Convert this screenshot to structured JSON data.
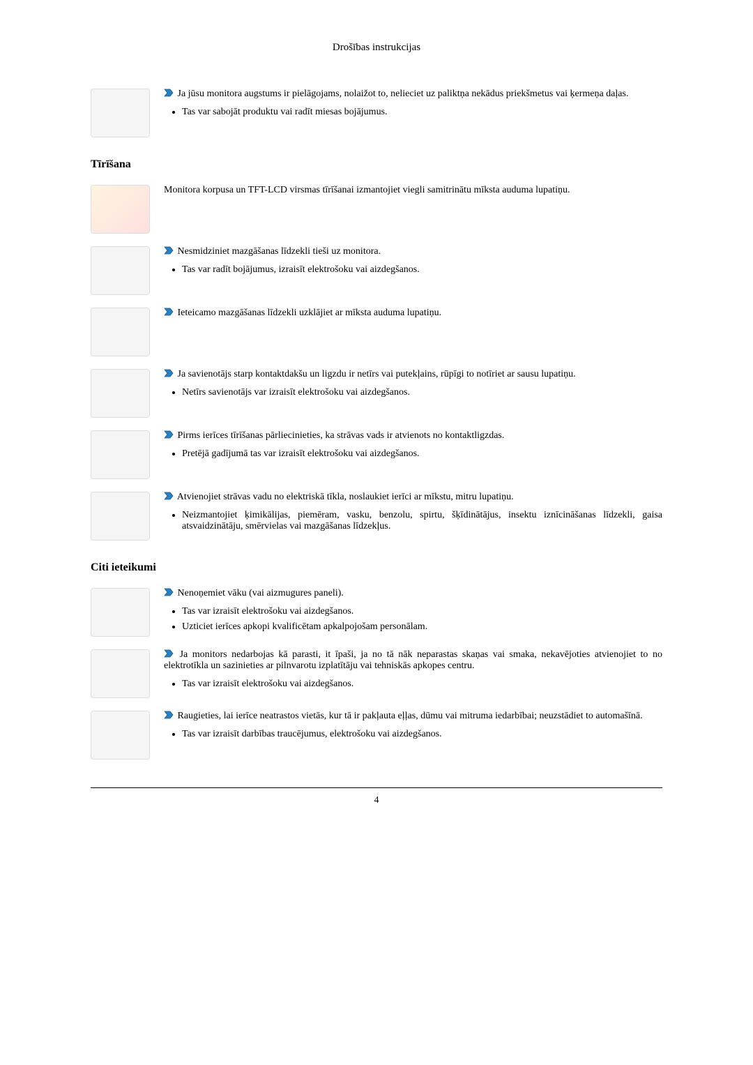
{
  "header": "Drošības instrukcijas",
  "pageNumber": "4",
  "arrow_fill": "#2a7fbf",
  "arrow_stroke": "#1b5a8a",
  "sections": [
    {
      "heading": null,
      "entries": [
        {
          "lead": "Ja jūsu monitora augstums ir pielāgojams, nolaižot to, nelieciet uz paliktņa nekādus priekšmetus vai ķermeņa daļas.",
          "bullets": [
            "Tas var sabojāt produktu vai radīt miesas bojājumus."
          ]
        }
      ]
    },
    {
      "heading": "Tīrīšana",
      "entries": [
        {
          "warn": true,
          "lead_plain": "Monitora korpusa un TFT-LCD virsmas tīrīšanai izmantojiet viegli samitrinātu mīksta auduma lupatiņu.",
          "bullets": []
        },
        {
          "lead": "Nesmidziniet mazgāšanas līdzekli tieši uz monitora.",
          "bullets": [
            "Tas var radīt bojājumus, izraisīt elektrošoku vai aizdegšanos."
          ]
        },
        {
          "lead": "Ieteicamo mazgāšanas līdzekli uzklājiet ar mīksta auduma lupatiņu.",
          "bullets": []
        },
        {
          "lead": "Ja savienotājs starp kontaktdakšu un ligzdu ir netīrs vai putekļains, rūpīgi to notīriet ar sausu lupatiņu.",
          "bullets": [
            "Netīrs savienotājs var izraisīt elektrošoku vai aizdegšanos."
          ]
        },
        {
          "lead": "Pirms ierīces tīrīšanas pārliecinieties, ka strāvas vads ir atvienots no kontaktligzdas.",
          "bullets": [
            "Pretējā gadījumā tas var izraisīt elektrošoku vai aizdegšanos."
          ]
        },
        {
          "lead": "Atvienojiet strāvas vadu no elektriskā tīkla, noslaukiet ierīci ar mīkstu, mitru lupatiņu.",
          "bullets": [
            "Neizmantojiet ķimikālijas, piemēram, vasku, benzolu, spirtu, šķīdinātājus, insektu iznīcināšanas līdzekli, gaisa atsvaidzinātāju, smērvielas vai mazgāšanas līdzekļus."
          ]
        }
      ]
    },
    {
      "heading": "Citi ieteikumi",
      "entries": [
        {
          "lead": "Nenoņemiet vāku (vai aizmugures paneli).",
          "bullets": [
            "Tas var izraisīt elektrošoku vai aizdegšanos.",
            "Uzticiet ierīces apkopi kvalificētam apkalpojošam personālam."
          ]
        },
        {
          "lead": "Ja monitors nedarbojas kā parasti, it īpaši, ja no tā nāk neparastas skaņas vai smaka, nekavējoties atvienojiet to no elektrotīkla un sazinieties ar pilnvarotu izplatītāju vai tehniskās apkopes centru.",
          "bullets": [
            "Tas var izraisīt elektrošoku vai aizdegšanos."
          ]
        },
        {
          "lead": "Raugieties, lai ierīce neatrastos vietās, kur tā ir pakļauta eļļas, dūmu vai mitruma iedarbībai; neuzstādiet to automašīnā.",
          "bullets": [
            "Tas var izraisīt darbības traucējumus, elektrošoku vai aizdegšanos."
          ]
        }
      ]
    }
  ]
}
